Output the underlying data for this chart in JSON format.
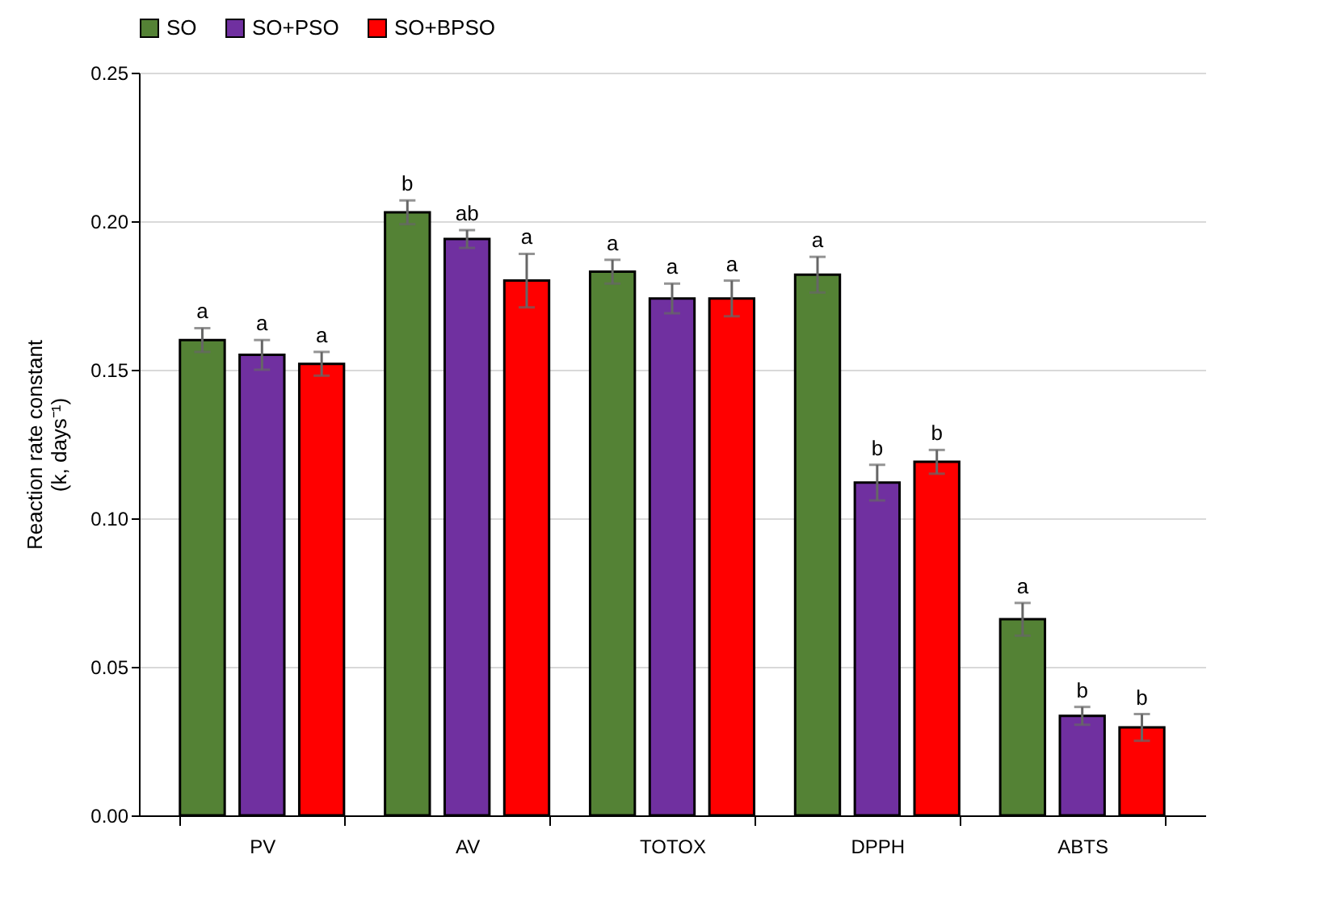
{
  "chart_data": {
    "type": "bar",
    "ylabel": "Reaction rate constant\n(k, days⁻¹)",
    "categories": [
      "PV",
      "AV",
      "TOTOX",
      "DPPH",
      "ABTS"
    ],
    "series": [
      {
        "name": "SO",
        "color": "#548235",
        "values": [
          0.16,
          0.203,
          0.183,
          0.182,
          0.066
        ],
        "errors": [
          0.004,
          0.004,
          0.004,
          0.006,
          0.0055
        ],
        "value_labels": [
          "a",
          "b",
          "a",
          "a",
          "a"
        ]
      },
      {
        "name": "SO+PSO",
        "color": "#7030a0",
        "values": [
          0.155,
          0.194,
          0.174,
          0.112,
          0.0335
        ],
        "errors": [
          0.005,
          0.003,
          0.005,
          0.006,
          0.003
        ],
        "value_labels": [
          "a",
          "ab",
          "a",
          "b",
          "b"
        ]
      },
      {
        "name": "SO+BPSO",
        "color": "#ff0000",
        "values": [
          0.152,
          0.18,
          0.174,
          0.119,
          0.0296
        ],
        "errors": [
          0.004,
          0.009,
          0.006,
          0.004,
          0.0045
        ],
        "value_labels": [
          "a",
          "a",
          "a",
          "b",
          "b"
        ]
      }
    ],
    "ylim": [
      0,
      0.25
    ],
    "yticks": [
      {
        "value": 0,
        "label": "0.00"
      },
      {
        "value": 0.05,
        "label": "0.05"
      },
      {
        "value": 0.1,
        "label": "0.10"
      },
      {
        "value": 0.15,
        "label": "0.15"
      },
      {
        "value": 0.2,
        "label": "0.20"
      },
      {
        "value": 0.25,
        "label": "0.25"
      }
    ],
    "grid": "y",
    "legend": "top"
  }
}
